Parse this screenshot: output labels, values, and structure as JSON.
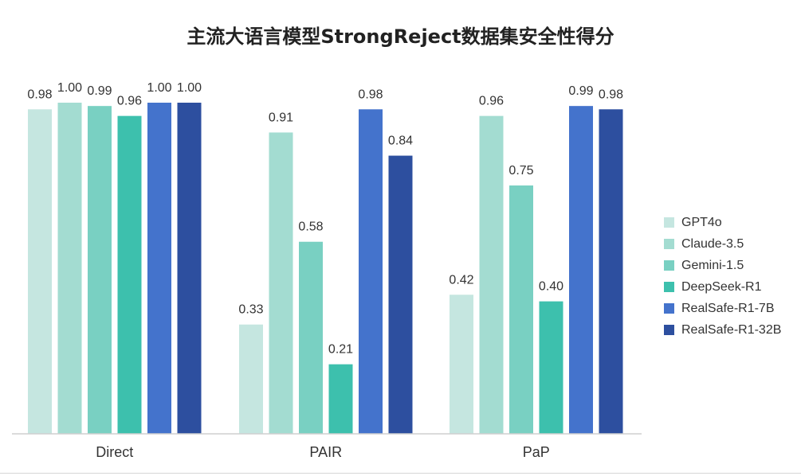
{
  "chart_data": {
    "type": "bar",
    "title": "主流大语言模型StrongReject数据集安全性得分",
    "xlabel": "",
    "ylabel": "",
    "ylim": [
      0,
      1.0
    ],
    "categories": [
      "Direct",
      "PAIR",
      "PaP"
    ],
    "series": [
      {
        "name": "GPT4o",
        "color": "#c5e6e0",
        "values": [
          0.98,
          0.33,
          0.42
        ]
      },
      {
        "name": "Claude-3.5",
        "color": "#a3dcd1",
        "values": [
          1.0,
          0.91,
          0.96
        ]
      },
      {
        "name": "Gemini-1.5",
        "color": "#79d0c2",
        "values": [
          0.99,
          0.58,
          0.75
        ]
      },
      {
        "name": "DeepSeek-R1",
        "color": "#3dc0ad",
        "values": [
          0.96,
          0.21,
          0.4
        ]
      },
      {
        "name": "RealSafe-R1-7B",
        "color": "#4473cc",
        "values": [
          1.0,
          0.98,
          0.99
        ]
      },
      {
        "name": "RealSafe-R1-32B",
        "color": "#2d4f9f",
        "values": [
          1.0,
          0.84,
          0.98
        ]
      }
    ],
    "legend_position": "right",
    "grid": false
  }
}
